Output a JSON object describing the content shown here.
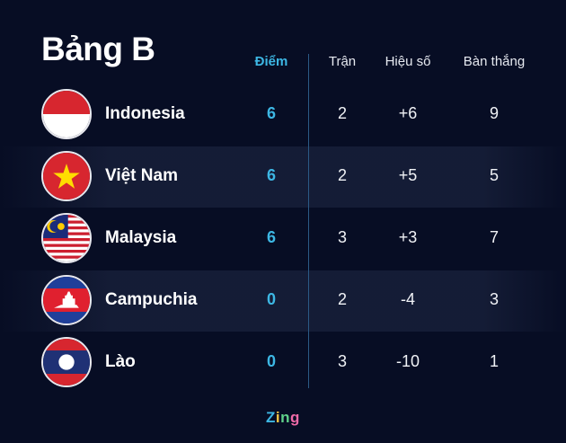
{
  "title": "Bảng B",
  "columns": {
    "points": "Điểm",
    "played": "Trận",
    "goal_diff": "Hiệu số",
    "goals_for": "Bàn thắng"
  },
  "colors": {
    "background": "#070d24",
    "accent": "#3db7e4",
    "divider": "#2b5a86"
  },
  "rows": [
    {
      "team": "Indonesia",
      "flag": "indonesia-flag",
      "points": "6",
      "played": "2",
      "goal_diff": "+6",
      "goals_for": "9"
    },
    {
      "team": "Việt Nam",
      "flag": "vietnam-flag",
      "points": "6",
      "played": "2",
      "goal_diff": "+5",
      "goals_for": "5"
    },
    {
      "team": "Malaysia",
      "flag": "malaysia-flag",
      "points": "6",
      "played": "3",
      "goal_diff": "+3",
      "goals_for": "7"
    },
    {
      "team": "Campuchia",
      "flag": "cambodia-flag",
      "points": "0",
      "played": "2",
      "goal_diff": "-4",
      "goals_for": "3"
    },
    {
      "team": "Lào",
      "flag": "laos-flag",
      "points": "0",
      "played": "3",
      "goal_diff": "-10",
      "goals_for": "1"
    }
  ],
  "logo": "Zing"
}
